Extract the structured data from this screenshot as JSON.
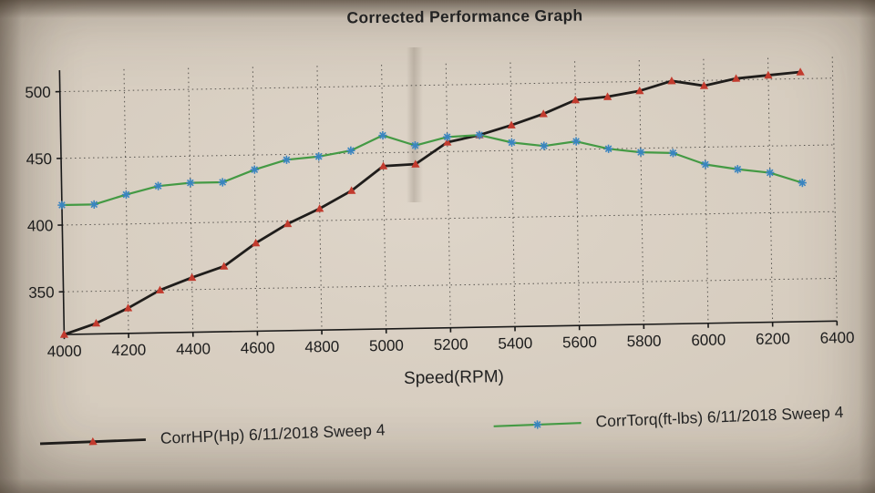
{
  "photo": {
    "paper_color": "#d3c9bb",
    "description": "photograph of a printed dyno performance chart"
  },
  "chart_data": {
    "type": "line",
    "title": "Corrected Performance Graph",
    "xlabel": "Speed(RPM)",
    "ylabel": "",
    "xlim": [
      4000,
      6400
    ],
    "ylim": [
      318,
      516
    ],
    "x_ticks": [
      4000,
      4200,
      4400,
      4600,
      4800,
      5000,
      5200,
      5400,
      5600,
      5800,
      6000,
      6200,
      6400
    ],
    "y_ticks": [
      350,
      400,
      450,
      500
    ],
    "grid": true,
    "grid_style": "dotted",
    "legend_position": "bottom",
    "x": [
      4000,
      4100,
      4200,
      4300,
      4400,
      4500,
      4600,
      4700,
      4800,
      4900,
      5000,
      5100,
      5200,
      5300,
      5400,
      5500,
      5600,
      5700,
      5800,
      5900,
      6000,
      6100,
      6200,
      6300
    ],
    "series": [
      {
        "name": "CorrHP(Hp) 6/11/2018 Sweep 4",
        "color": "#1f1d1b",
        "width": 2.8,
        "marker": "triangle",
        "marker_color": "#c23b2e",
        "values": [
          318,
          326,
          337,
          350,
          359,
          367,
          384,
          398,
          409,
          422,
          440,
          441,
          457,
          462,
          469,
          477,
          487,
          489,
          493,
          500,
          496,
          501,
          503,
          505
        ]
      },
      {
        "name": "CorrTorq(ft-lbs) 6/11/2018 Sweep 4",
        "color": "#449a44",
        "width": 2.2,
        "marker": "asterisk",
        "marker_color": "#3a85c0",
        "values": [
          415,
          415,
          422,
          428,
          430,
          430,
          439,
          446,
          448,
          452,
          463,
          455,
          461,
          462,
          456,
          453,
          456,
          450,
          447,
          446,
          437,
          433,
          430,
          422
        ]
      }
    ]
  }
}
